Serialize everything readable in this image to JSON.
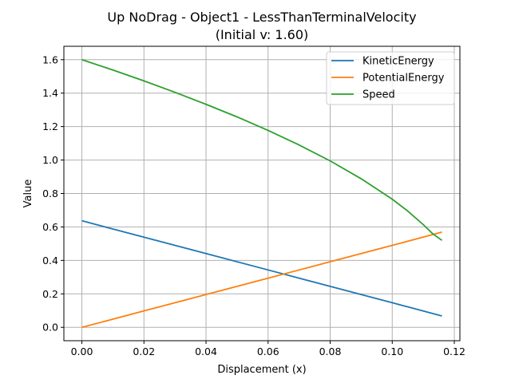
{
  "chart_data": {
    "type": "line",
    "title": "Up NoDrag - Object1 - LessThanTerminalVelocity",
    "subtitle": "(Initial v: 1.60)",
    "xlabel": "Displacement (x)",
    "ylabel": "Value",
    "xlim": [
      -0.0058,
      0.1218
    ],
    "ylim": [
      -0.08,
      1.68
    ],
    "xticks": [
      0.0,
      0.02,
      0.04,
      0.06,
      0.08,
      0.1,
      0.12
    ],
    "xtick_labels": [
      "0.00",
      "0.02",
      "0.04",
      "0.06",
      "0.08",
      "0.10",
      "0.12"
    ],
    "yticks": [
      0.0,
      0.2,
      0.4,
      0.6,
      0.8,
      1.0,
      1.2,
      1.4,
      1.6
    ],
    "ytick_labels": [
      "0.0",
      "0.2",
      "0.4",
      "0.6",
      "0.8",
      "1.0",
      "1.2",
      "1.4",
      "1.6"
    ],
    "grid": true,
    "legend_position": "top-right",
    "series": [
      {
        "name": "KineticEnergy",
        "color": "#1f77b4",
        "x": [
          0.0,
          0.02,
          0.04,
          0.06,
          0.08,
          0.1,
          0.116
        ],
        "y": [
          0.637,
          0.539,
          0.441,
          0.343,
          0.245,
          0.147,
          0.068
        ]
      },
      {
        "name": "PotentialEnergy",
        "color": "#ff7f0e",
        "x": [
          0.0,
          0.02,
          0.04,
          0.06,
          0.08,
          0.1,
          0.116
        ],
        "y": [
          0.0,
          0.098,
          0.196,
          0.294,
          0.392,
          0.49,
          0.569
        ]
      },
      {
        "name": "Speed",
        "color": "#2ca02c",
        "x": [
          0.0,
          0.01,
          0.02,
          0.03,
          0.04,
          0.05,
          0.06,
          0.07,
          0.08,
          0.09,
          0.1,
          0.105,
          0.11,
          0.113,
          0.116
        ],
        "y": [
          1.6,
          1.538,
          1.473,
          1.405,
          1.333,
          1.258,
          1.177,
          1.09,
          0.995,
          0.888,
          0.766,
          0.695,
          0.614,
          0.56,
          0.52
        ]
      }
    ]
  }
}
